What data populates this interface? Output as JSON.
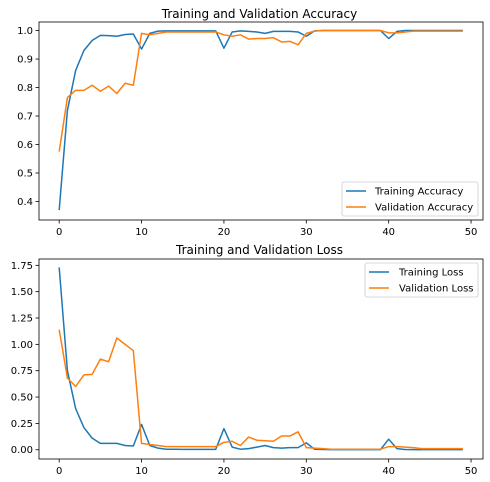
{
  "chart_data": [
    {
      "type": "line",
      "title": "Training and Validation Accuracy",
      "xlabel": "",
      "ylabel": "",
      "xlim": [
        -2.45,
        51.45
      ],
      "ylim": [
        0.335,
        1.03
      ],
      "xticks": [
        0,
        10,
        20,
        30,
        40,
        50
      ],
      "yticks": [
        0.4,
        0.5,
        0.6,
        0.7,
        0.8,
        0.9,
        1.0
      ],
      "ytick_labels": [
        "0.4",
        "0.5",
        "0.6",
        "0.7",
        "0.8",
        "0.9",
        "1.0"
      ],
      "grid": false,
      "legend_position": "lower-right",
      "series": [
        {
          "name": "Training Accuracy",
          "color": "#1f77b4",
          "x": [
            0,
            1,
            2,
            3,
            4,
            5,
            6,
            7,
            8,
            9,
            10,
            11,
            12,
            13,
            14,
            15,
            16,
            17,
            18,
            19,
            20,
            21,
            22,
            23,
            24,
            25,
            26,
            27,
            28,
            29,
            30,
            31,
            32,
            33,
            34,
            35,
            36,
            37,
            38,
            39,
            40,
            41,
            42,
            43,
            44,
            45,
            46,
            47,
            48,
            49
          ],
          "y": [
            0.37,
            0.72,
            0.86,
            0.93,
            0.965,
            0.983,
            0.982,
            0.98,
            0.986,
            0.988,
            0.935,
            0.99,
            0.998,
            0.999,
            0.999,
            0.999,
            0.999,
            0.999,
            0.999,
            0.999,
            0.938,
            0.995,
            0.999,
            0.997,
            0.995,
            0.99,
            0.997,
            0.997,
            0.997,
            0.995,
            0.98,
            0.999,
            1.0,
            1.0,
            1.0,
            1.0,
            1.0,
            1.0,
            1.0,
            1.0,
            0.972,
            0.997,
            1.0,
            1.0,
            1.0,
            1.0,
            1.0,
            1.0,
            1.0,
            1.0
          ]
        },
        {
          "name": "Validation Accuracy",
          "color": "#ff7f0e",
          "x": [
            0,
            1,
            2,
            3,
            4,
            5,
            6,
            7,
            8,
            9,
            10,
            11,
            12,
            13,
            14,
            15,
            16,
            17,
            18,
            19,
            20,
            21,
            22,
            23,
            24,
            25,
            26,
            27,
            28,
            29,
            30,
            31,
            32,
            33,
            34,
            35,
            36,
            37,
            38,
            39,
            40,
            41,
            42,
            43,
            44,
            45,
            46,
            47,
            48,
            49
          ],
          "y": [
            0.575,
            0.765,
            0.79,
            0.79,
            0.808,
            0.787,
            0.805,
            0.779,
            0.815,
            0.808,
            0.99,
            0.985,
            0.99,
            0.995,
            0.995,
            0.995,
            0.995,
            0.995,
            0.995,
            0.995,
            0.985,
            0.98,
            0.985,
            0.97,
            0.972,
            0.972,
            0.975,
            0.96,
            0.962,
            0.95,
            0.99,
            0.998,
            1.0,
            1.0,
            1.0,
            1.0,
            1.0,
            1.0,
            1.0,
            1.0,
            0.992,
            0.992,
            0.995,
            0.998,
            0.998,
            0.998,
            0.998,
            0.998,
            0.998,
            0.998
          ]
        }
      ]
    },
    {
      "type": "line",
      "title": "Training and Validation Loss",
      "xlabel": "",
      "ylabel": "",
      "xlim": [
        -2.45,
        51.45
      ],
      "ylim": [
        -0.088,
        1.81
      ],
      "xticks": [
        0,
        10,
        20,
        30,
        40,
        50
      ],
      "yticks": [
        0.0,
        0.25,
        0.5,
        0.75,
        1.0,
        1.25,
        1.5,
        1.75
      ],
      "ytick_labels": [
        "0.00",
        "0.25",
        "0.50",
        "0.75",
        "1.00",
        "1.25",
        "1.50",
        "1.75"
      ],
      "grid": false,
      "legend_position": "upper-right",
      "series": [
        {
          "name": "Training Loss",
          "color": "#1f77b4",
          "x": [
            0,
            1,
            2,
            3,
            4,
            5,
            6,
            7,
            8,
            9,
            10,
            11,
            12,
            13,
            14,
            15,
            16,
            17,
            18,
            19,
            20,
            21,
            22,
            23,
            24,
            25,
            26,
            27,
            28,
            29,
            30,
            31,
            32,
            33,
            34,
            35,
            36,
            37,
            38,
            39,
            40,
            41,
            42,
            43,
            44,
            45,
            46,
            47,
            48,
            49
          ],
          "y": [
            1.73,
            0.75,
            0.39,
            0.21,
            0.11,
            0.06,
            0.06,
            0.06,
            0.04,
            0.035,
            0.24,
            0.04,
            0.015,
            0.005,
            0.004,
            0.003,
            0.003,
            0.003,
            0.003,
            0.003,
            0.2,
            0.025,
            0.005,
            0.01,
            0.025,
            0.04,
            0.02,
            0.015,
            0.02,
            0.02,
            0.065,
            0.005,
            0.002,
            0.001,
            0.001,
            0.001,
            0.001,
            0.001,
            0.001,
            0.001,
            0.1,
            0.01,
            0.002,
            0.001,
            0.001,
            0.001,
            0.001,
            0.001,
            0.001,
            0.001
          ]
        },
        {
          "name": "Validation Loss",
          "color": "#ff7f0e",
          "x": [
            0,
            1,
            2,
            3,
            4,
            5,
            6,
            7,
            8,
            9,
            10,
            11,
            12,
            13,
            14,
            15,
            16,
            17,
            18,
            19,
            20,
            21,
            22,
            23,
            24,
            25,
            26,
            27,
            28,
            29,
            30,
            31,
            32,
            33,
            34,
            35,
            36,
            37,
            38,
            39,
            40,
            41,
            42,
            43,
            44,
            45,
            46,
            47,
            48,
            49
          ],
          "y": [
            1.14,
            0.68,
            0.6,
            0.71,
            0.715,
            0.86,
            0.835,
            1.06,
            1.0,
            0.94,
            0.06,
            0.05,
            0.04,
            0.03,
            0.03,
            0.03,
            0.03,
            0.03,
            0.03,
            0.03,
            0.07,
            0.08,
            0.04,
            0.12,
            0.09,
            0.085,
            0.08,
            0.13,
            0.13,
            0.17,
            0.02,
            0.015,
            0.01,
            0.005,
            0.005,
            0.005,
            0.005,
            0.005,
            0.005,
            0.005,
            0.03,
            0.03,
            0.025,
            0.02,
            0.01,
            0.01,
            0.01,
            0.01,
            0.01,
            0.01
          ]
        }
      ]
    }
  ]
}
